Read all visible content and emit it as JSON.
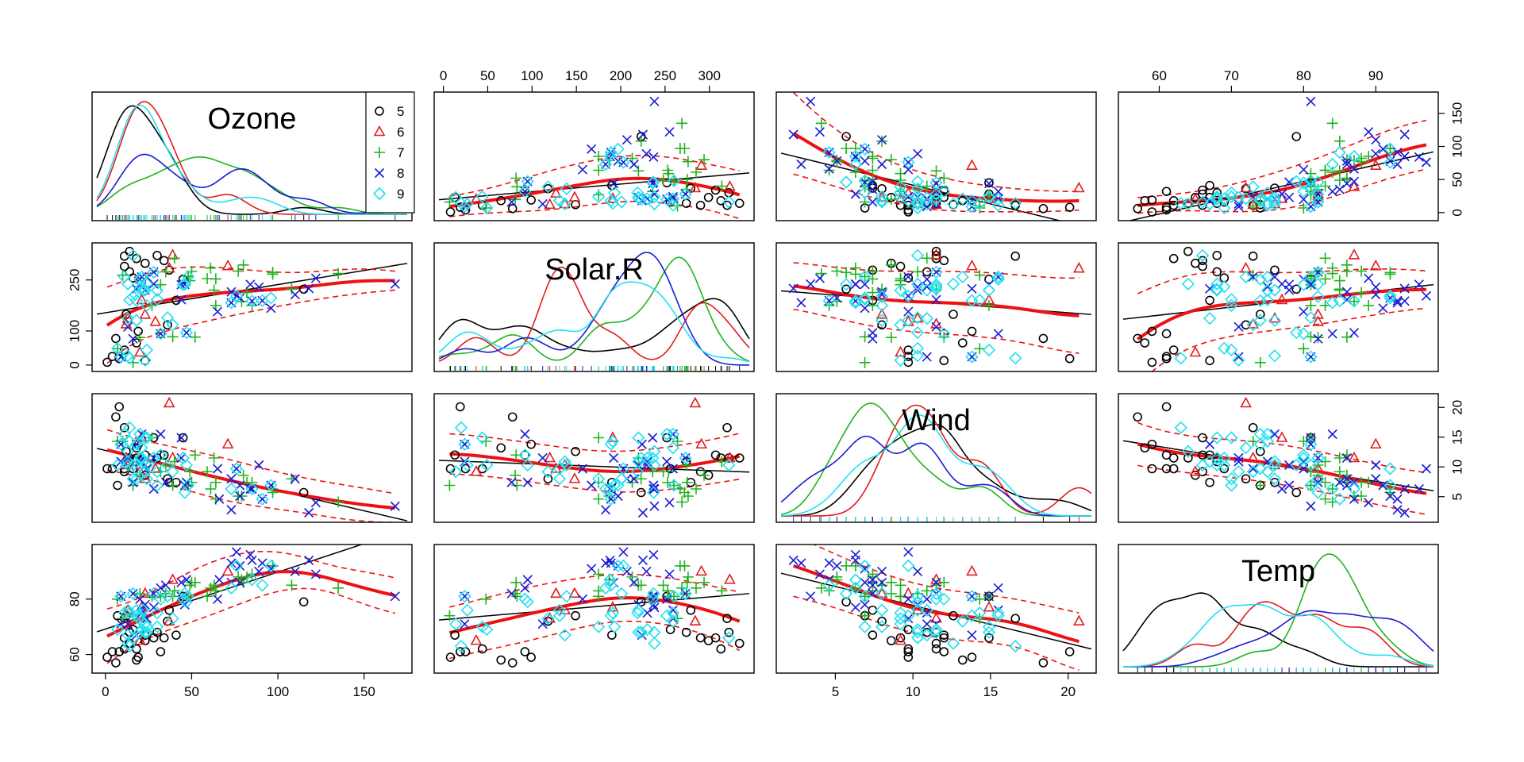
{
  "chart_data": {
    "type": "scatter",
    "title": "",
    "variables": [
      "Ozone",
      "Solar.R",
      "Wind",
      "Temp"
    ],
    "group_colors": {
      "5": "#000000",
      "6": "#e41a1c",
      "7": "#1fb31f",
      "8": "#1a1ad6",
      "9": "#22e0f0"
    },
    "group_symbols": {
      "5": "circle",
      "6": "triangle",
      "7": "plus",
      "8": "cross",
      "9": "diamond"
    },
    "legend": {
      "position": "top-right of Ozone panel",
      "entries": [
        "5",
        "6",
        "7",
        "8",
        "9"
      ]
    },
    "axes": {
      "Ozone": {
        "range": [
          -5,
          175
        ],
        "ticks": [
          0,
          50,
          100,
          150
        ],
        "tick_labels": [
          "0",
          "50",
          "100",
          "150"
        ]
      },
      "Solar.R": {
        "range": [
          -5,
          345
        ],
        "ticks": [
          0,
          50,
          100,
          150,
          200,
          250,
          300
        ],
        "tick_labels": [
          "0",
          "50",
          "100",
          "150",
          "200",
          "250",
          "300"
        ],
        "left_ticks": [
          0,
          100,
          250
        ],
        "left_tick_labels": [
          "0",
          "100",
          "250"
        ]
      },
      "Wind": {
        "range": [
          1.5,
          21.5
        ],
        "ticks": [
          5,
          10,
          15,
          20
        ],
        "tick_labels": [
          "5",
          "10",
          "15",
          "20"
        ]
      },
      "Temp": {
        "range": [
          55,
          98
        ],
        "ticks": [
          60,
          70,
          80,
          90
        ],
        "tick_labels": [
          "60",
          "70",
          "80",
          "90"
        ],
        "left_ticks": [
          60,
          80
        ],
        "left_tick_labels": [
          "60",
          "80"
        ]
      }
    },
    "diagonal_labels": [
      "Ozone",
      "Solar.R",
      "Wind",
      "Temp"
    ],
    "points": {
      "5": [
        [
          41,
          190,
          7.4,
          67
        ],
        [
          36,
          118,
          8,
          72
        ],
        [
          12,
          149,
          12.6,
          74
        ],
        [
          18,
          313,
          11.5,
          62
        ],
        [
          28,
          null,
          14.9,
          66
        ],
        [
          23,
          299,
          8.6,
          65
        ],
        [
          19,
          99,
          13.8,
          59
        ],
        [
          8,
          19,
          20.1,
          61
        ],
        [
          7,
          null,
          6.9,
          74
        ],
        [
          16,
          256,
          9.7,
          69
        ],
        [
          11,
          290,
          9.2,
          66
        ],
        [
          14,
          274,
          10.9,
          68
        ],
        [
          18,
          65,
          13.2,
          58
        ],
        [
          14,
          334,
          11.5,
          64
        ],
        [
          34,
          307,
          12,
          66
        ],
        [
          6,
          78,
          18.4,
          57
        ],
        [
          30,
          322,
          11.5,
          68
        ],
        [
          11,
          44,
          9.7,
          62
        ],
        [
          1,
          8,
          9.7,
          59
        ],
        [
          11,
          320,
          16.6,
          73
        ],
        [
          4,
          25,
          9.7,
          61
        ],
        [
          32,
          92,
          12,
          61
        ],
        [
          23,
          13,
          12,
          67
        ],
        [
          45,
          252,
          14.9,
          81
        ],
        [
          115,
          223,
          5.7,
          79
        ],
        [
          37,
          279,
          7.4,
          76
        ]
      ],
      "6": [
        [
          29,
          127,
          9.7,
          82
        ],
        [
          71,
          291,
          13.8,
          90
        ],
        [
          39,
          323,
          11.5,
          87
        ],
        [
          23,
          148,
          8,
          82
        ],
        [
          21,
          191,
          14.9,
          77
        ],
        [
          37,
          284,
          20.7,
          72
        ],
        [
          20,
          37,
          9.2,
          65
        ],
        [
          12,
          120,
          11.5,
          73
        ],
        [
          13,
          137,
          10.3,
          76
        ]
      ],
      "7": [
        [
          135,
          269,
          4.1,
          84
        ],
        [
          49,
          248,
          9.2,
          85
        ],
        [
          32,
          236,
          9.2,
          81
        ],
        [
          64,
          175,
          4.6,
          83
        ],
        [
          40,
          314,
          10.9,
          83
        ],
        [
          77,
          276,
          5.1,
          88
        ],
        [
          97,
          267,
          6.3,
          92
        ],
        [
          97,
          272,
          5.7,
          92
        ],
        [
          85,
          175,
          7.4,
          89
        ],
        [
          10,
          264,
          14.3,
          73
        ],
        [
          27,
          175,
          14.9,
          81
        ],
        [
          7,
          48,
          14.3,
          80
        ],
        [
          48,
          260,
          6.9,
          81
        ],
        [
          35,
          274,
          10.3,
          82
        ],
        [
          61,
          285,
          6.3,
          84
        ],
        [
          79,
          187,
          5.1,
          87
        ],
        [
          63,
          220,
          11.5,
          85
        ],
        [
          16,
          7,
          6.9,
          74
        ],
        [
          80,
          294,
          8.6,
          86
        ],
        [
          108,
          223,
          8,
          85
        ],
        [
          20,
          81,
          8.6,
          82
        ],
        [
          52,
          82,
          12,
          86
        ],
        [
          82,
          213,
          7.4,
          88
        ],
        [
          50,
          275,
          7.4,
          86
        ],
        [
          64,
          253,
          7.4,
          83
        ],
        [
          59,
          254,
          9.2,
          81
        ],
        [
          39,
          83,
          6.9,
          81
        ]
      ],
      "8": [
        [
          9,
          24,
          13.8,
          81
        ],
        [
          16,
          77,
          7.4,
          82
        ],
        [
          78,
          null,
          6.9,
          86
        ],
        [
          35,
          null,
          7.4,
          85
        ],
        [
          66,
          null,
          4.6,
          87
        ],
        [
          122,
          255,
          4,
          89
        ],
        [
          89,
          229,
          10.3,
          90
        ],
        [
          110,
          207,
          8,
          90
        ],
        [
          44,
          192,
          11.5,
          86
        ],
        [
          28,
          273,
          11.5,
          82
        ],
        [
          65,
          157,
          9.7,
          80
        ],
        [
          168,
          238,
          3.4,
          81
        ],
        [
          73,
          215,
          8,
          86
        ],
        [
          76,
          203,
          9.7,
          97
        ],
        [
          118,
          225,
          2.3,
          94
        ],
        [
          84,
          237,
          6.3,
          96
        ],
        [
          85,
          188,
          6.3,
          94
        ],
        [
          96,
          167,
          6.9,
          91
        ],
        [
          78,
          197,
          5.1,
          92
        ],
        [
          73,
          183,
          2.8,
          93
        ],
        [
          91,
          189,
          4.6,
          93
        ],
        [
          47,
          95,
          7.4,
          87
        ],
        [
          32,
          92,
          15.5,
          84
        ],
        [
          20,
          252,
          10.9,
          80
        ],
        [
          23,
          220,
          10.3,
          78
        ],
        [
          21,
          230,
          10.9,
          75
        ],
        [
          24,
          259,
          9.7,
          73
        ],
        [
          44,
          236,
          14.9,
          81
        ],
        [
          21,
          259,
          15.5,
          76
        ],
        [
          28,
          238,
          6.3,
          77
        ],
        [
          9,
          24,
          10.9,
          71
        ],
        [
          13,
          112,
          11.5,
          71
        ],
        [
          46,
          237,
          6.9,
          78
        ],
        [
          18,
          224,
          13.8,
          67
        ]
      ],
      "9": [
        [
          13,
          27,
          10.3,
          76
        ],
        [
          24,
          238,
          10.3,
          68
        ],
        [
          16,
          201,
          8,
          82
        ],
        [
          13,
          238,
          12.6,
          64
        ],
        [
          23,
          14,
          9.2,
          71
        ],
        [
          36,
          139,
          10.3,
          81
        ],
        [
          7,
          49,
          10.3,
          69
        ],
        [
          14,
          20,
          16.6,
          63
        ],
        [
          30,
          193,
          6.9,
          70
        ],
        [
          14,
          191,
          14.3,
          75
        ],
        [
          18,
          131,
          8,
          76
        ],
        [
          20,
          223,
          11.5,
          68
        ],
        [
          13,
          137,
          10.9,
          67
        ],
        [
          9,
          24,
          13.8,
          81
        ],
        [
          48,
          260,
          6.9,
          81
        ],
        [
          24,
          44,
          14.9,
          70
        ],
        [
          30,
          219,
          9.2,
          75
        ],
        [
          39,
          118,
          9.2,
          73
        ],
        [
          11,
          259,
          15.5,
          75
        ],
        [
          16,
          322,
          10.3,
          66
        ],
        [
          21,
          259,
          13.2,
          72
        ],
        [
          22,
          220,
          10.9,
          76
        ],
        [
          46,
          237,
          5.7,
          82
        ],
        [
          18,
          189,
          13.8,
          74
        ],
        [
          24,
          175,
          8,
          70
        ],
        [
          45,
          236,
          11.5,
          80
        ],
        [
          28,
          273,
          11.5,
          82
        ],
        [
          96,
          197,
          6.9,
          92
        ],
        [
          76,
          203,
          9.7,
          92
        ],
        [
          85,
          188,
          6.3,
          87
        ],
        [
          73,
          183,
          6.3,
          84
        ],
        [
          91,
          189,
          4.6,
          85
        ],
        [
          47,
          95,
          10.3,
          79
        ],
        [
          32,
          92,
          12,
          80
        ],
        [
          20,
          252,
          15.5,
          74
        ],
        [
          23,
          220,
          14.9,
          68
        ],
        [
          21,
          230,
          11.5,
          69
        ],
        [
          18,
          131,
          9.7,
          74
        ]
      ]
    }
  }
}
